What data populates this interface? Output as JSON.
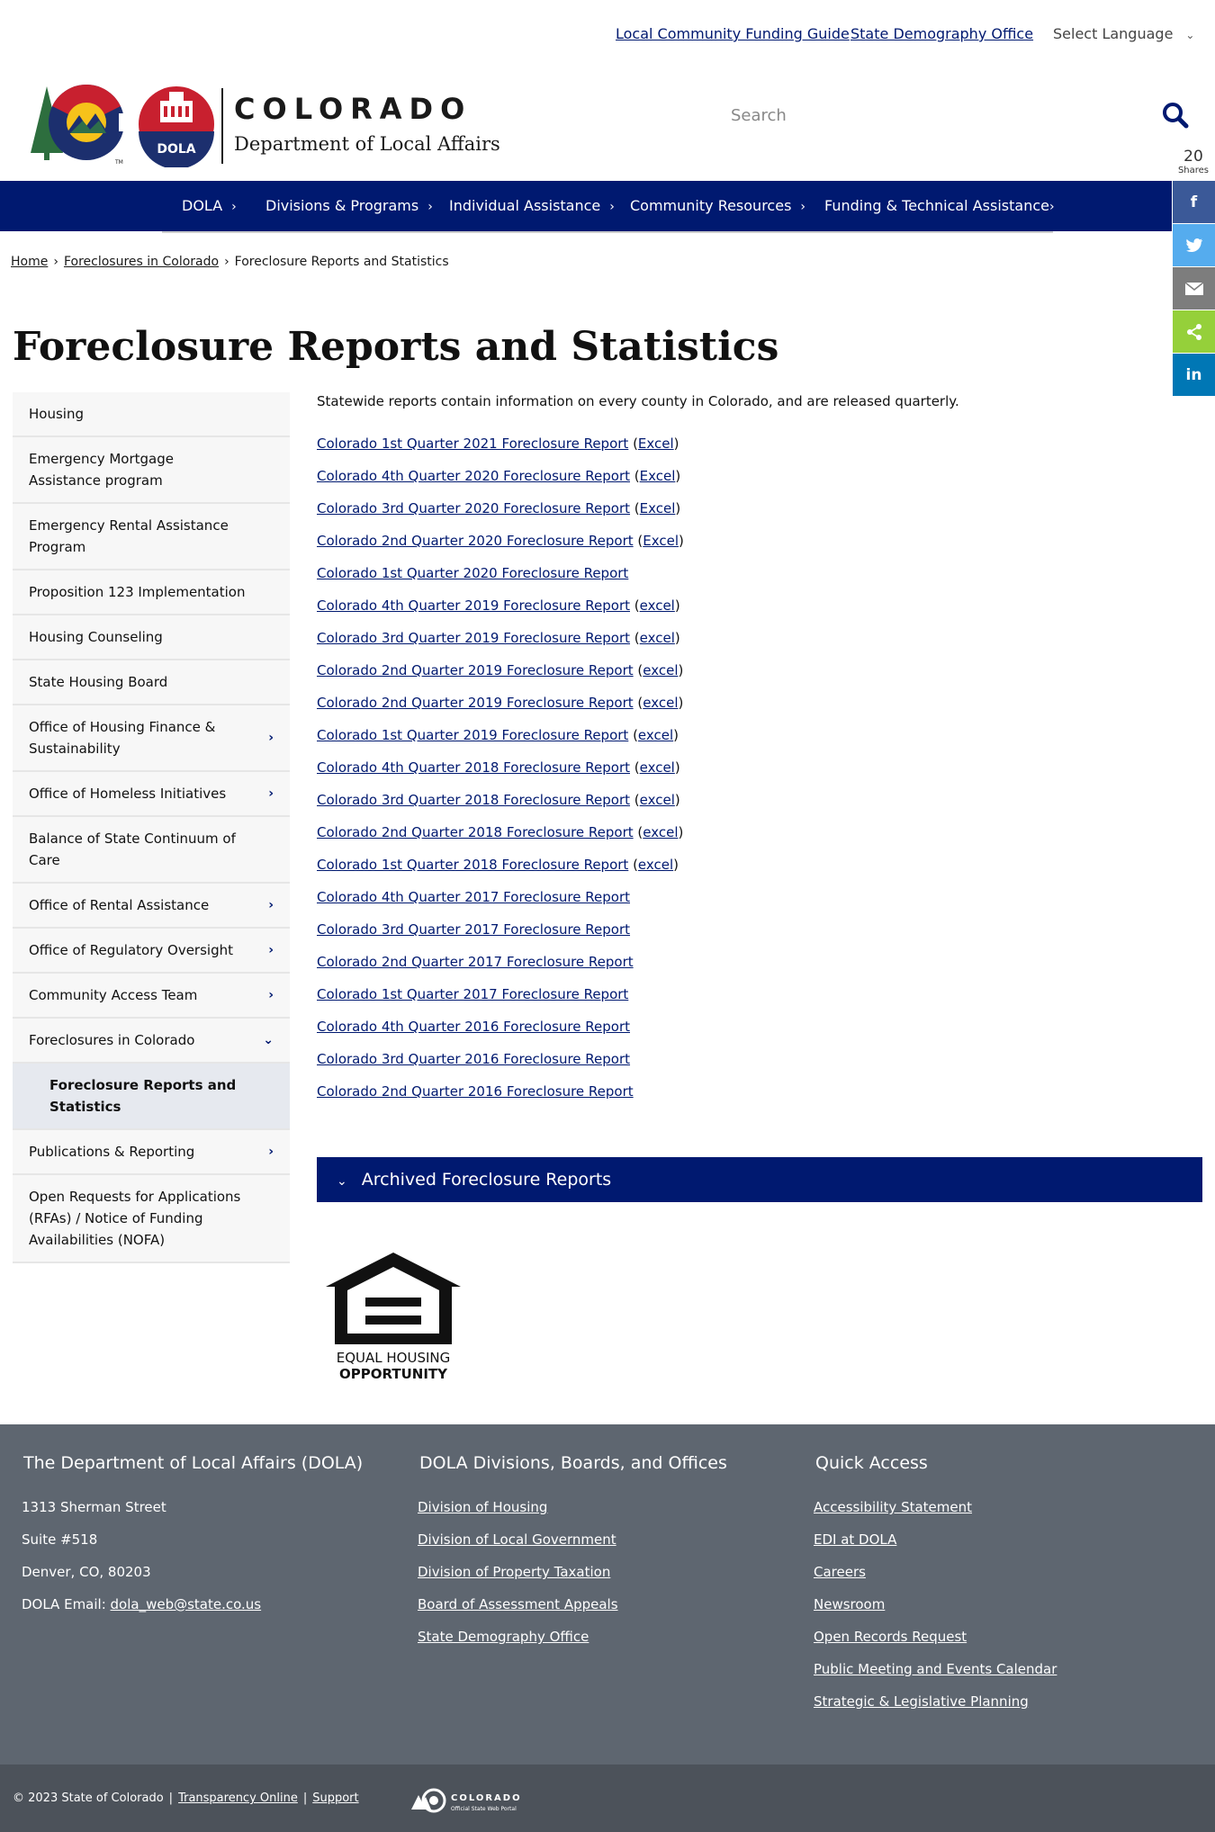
{
  "utility": {
    "link1": "Local Community Funding Guide",
    "link2": "State Demography Office",
    "language": "Select Language"
  },
  "header": {
    "wordmark": "COLORADO",
    "department": "Department of Local Affairs",
    "dola_badge": "DOLA",
    "search_placeholder": "Search"
  },
  "shares": {
    "count": "20",
    "label": "Shares",
    "buttons": [
      "facebook-icon",
      "twitter-icon",
      "email-icon",
      "share-icon",
      "linkedin-icon"
    ]
  },
  "nav": {
    "items": [
      "DOLA",
      "Divisions & Programs",
      "Individual Assistance",
      "Community Resources",
      "Funding & Technical Assistance"
    ]
  },
  "breadcrumb": {
    "home": "Home",
    "parent": "Foreclosures in Colorado",
    "current": "Foreclosure Reports and Statistics",
    "sep": "›"
  },
  "page_title": "Foreclosure Reports and Statistics",
  "sidebar": {
    "items": [
      "Housing",
      "Emergency Mortgage Assistance program",
      "Emergency Rental Assistance Program",
      "Proposition 123 Implementation",
      "Housing Counseling",
      "State Housing Board",
      "Office of Housing Finance & Sustainability",
      "Office of Homeless Initiatives",
      "Balance of State Continuum of Care",
      "Office of Rental Assistance",
      "Office of Regulatory Oversight",
      "Community Access Team",
      "Foreclosures in Colorado",
      "Foreclosure Reports and Statistics",
      "Publications & Reporting",
      "Open Requests for Applications (RFAs) / Notice of Funding Availabilities (NOFA)"
    ]
  },
  "main": {
    "intro": "Statewide reports contain information on every county in Colorado, and are released quarterly.",
    "reports": [
      {
        "title": "Colorado 1st Quarter 2021 Foreclosure Report",
        "excel": "Excel"
      },
      {
        "title": "Colorado 4th Quarter 2020 Foreclosure Report",
        "excel": "Excel"
      },
      {
        "title": "Colorado 3rd Quarter 2020 Foreclosure Report",
        "excel": "Excel"
      },
      {
        "title": "Colorado 2nd Quarter 2020 Foreclosure Report",
        "excel": "Excel"
      },
      {
        "title": "Colorado 1st Quarter 2020 Foreclosure Report",
        "excel": ""
      },
      {
        "title": "Colorado 4th Quarter 2019 Foreclosure Report",
        "excel": "excel"
      },
      {
        "title": "Colorado 3rd Quarter 2019 Foreclosure Report",
        "excel": "excel"
      },
      {
        "title": "Colorado 2nd Quarter 2019 Foreclosure Report",
        "excel": "excel"
      },
      {
        "title": "Colorado 2nd Quarter 2019 Foreclosure Report",
        "excel": "excel"
      },
      {
        "title": "Colorado 1st Quarter 2019 Foreclosure Report",
        "excel": "excel"
      },
      {
        "title": "Colorado 4th Quarter 2018 Foreclosure Report",
        "excel": "excel"
      },
      {
        "title": "Colorado 3rd Quarter 2018 Foreclosure Report",
        "excel": "excel"
      },
      {
        "title": "Colorado 2nd Quarter 2018 Foreclosure Report",
        "excel": "excel"
      },
      {
        "title": "Colorado 1st Quarter 2018 Foreclosure Report",
        "excel": "excel"
      },
      {
        "title": "Colorado 4th Quarter 2017 Foreclosure Report",
        "excel": ""
      },
      {
        "title": "Colorado 3rd Quarter 2017 Foreclosure Report",
        "excel": ""
      },
      {
        "title": "Colorado 2nd Quarter 2017 Foreclosure Report",
        "excel": ""
      },
      {
        "title": "Colorado 1st Quarter 2017 Foreclosure Report",
        "excel": ""
      },
      {
        "title": "Colorado 4th Quarter 2016 Foreclosure Report",
        "excel": ""
      },
      {
        "title": "Colorado 3rd Quarter 2016 Foreclosure Report",
        "excel": ""
      },
      {
        "title": "Colorado 2nd Quarter 2016 Foreclosure Report",
        "excel": ""
      }
    ],
    "accordion_label": "Archived Foreclosure Reports",
    "eho_line1": "EQUAL HOUSING",
    "eho_line2": "OPPORTUNITY"
  },
  "footer": {
    "col1": {
      "heading": "The Department of Local Affairs (DOLA)",
      "address1": "1313 Sherman Street",
      "address2": "Suite  #518",
      "address3": "Denver, CO, 80203",
      "email_label": "DOLA Email: ",
      "email": "dola_web@state.co.us"
    },
    "col2": {
      "heading": "DOLA Divisions, Boards, and Offices",
      "links": [
        "Division of Housing",
        "Division of Local Government",
        "Division of Property Taxation",
        "Board of Assessment Appeals",
        "State Demography Office"
      ]
    },
    "col3": {
      "heading": "Quick Access",
      "links": [
        "Accessibility Statement",
        "EDI at DOLA",
        "Careers",
        "Newsroom",
        "Open Records Request",
        "Public Meeting and Events Calendar",
        "Strategic & Legislative Planning"
      ]
    }
  },
  "bottom": {
    "copyright": "© 2023 State of Colorado",
    "transparency": "Transparency Online",
    "support": "Support",
    "separator": "|",
    "portal_name": "COLORADO",
    "portal_sub": "Official State Web Portal"
  },
  "colors": {
    "navy": "#001970",
    "footer": "#5e6670",
    "footer_bottom": "#4c525a",
    "facebook": "#3b5998",
    "twitter": "#55acee",
    "email": "#7d7d7d",
    "share": "#95d03a",
    "linkedin": "#0077b5"
  }
}
